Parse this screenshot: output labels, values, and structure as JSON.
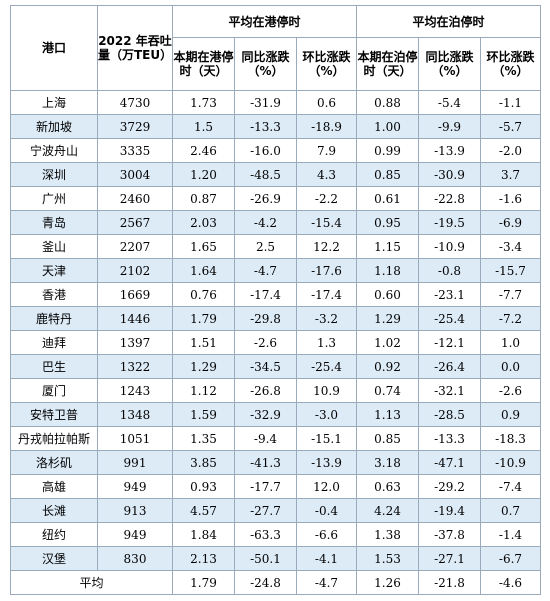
{
  "table": {
    "header": {
      "port": "港口",
      "throughput": "2022 年吞吐量（万TEU）",
      "group_port": "平均在港停时",
      "group_berth": "平均在泊停时",
      "sub": [
        "本期在港停时（天）",
        "同比涨跌（%）",
        "环比涨跌（%）",
        "本期在泊停时（天）",
        "同比涨跌（%）",
        "环比涨跌（%）"
      ]
    },
    "rows": [
      [
        "上海",
        "4730",
        "1.73",
        "-31.9",
        "0.6",
        "0.88",
        "-5.4",
        "-1.1"
      ],
      [
        "新加坡",
        "3729",
        "1.5",
        "-13.3",
        "-18.9",
        "1.00",
        "-9.9",
        "-5.7"
      ],
      [
        "宁波舟山",
        "3335",
        "2.46",
        "-16.0",
        "7.9",
        "0.99",
        "-13.9",
        "-2.0"
      ],
      [
        "深圳",
        "3004",
        "1.20",
        "-48.5",
        "4.3",
        "0.85",
        "-30.9",
        "3.7"
      ],
      [
        "广州",
        "2460",
        "0.87",
        "-26.9",
        "-2.2",
        "0.61",
        "-22.8",
        "-1.6"
      ],
      [
        "青岛",
        "2567",
        "2.03",
        "-4.2",
        "-15.4",
        "0.95",
        "-19.5",
        "-6.9"
      ],
      [
        "釜山",
        "2207",
        "1.65",
        "2.5",
        "12.2",
        "1.15",
        "-10.9",
        "-3.4"
      ],
      [
        "天津",
        "2102",
        "1.64",
        "-4.7",
        "-17.6",
        "1.18",
        "-0.8",
        "-15.7"
      ],
      [
        "香港",
        "1669",
        "0.76",
        "-17.4",
        "-17.4",
        "0.60",
        "-23.1",
        "-7.7"
      ],
      [
        "鹿特丹",
        "1446",
        "1.79",
        "-29.8",
        "-3.2",
        "1.29",
        "-25.4",
        "-7.2"
      ],
      [
        "迪拜",
        "1397",
        "1.51",
        "-2.6",
        "1.3",
        "1.02",
        "-12.1",
        "1.0"
      ],
      [
        "巴生",
        "1322",
        "1.29",
        "-34.5",
        "-25.4",
        "0.92",
        "-26.4",
        "0.0"
      ],
      [
        "厦门",
        "1243",
        "1.12",
        "-26.8",
        "10.9",
        "0.74",
        "-32.1",
        "-2.6"
      ],
      [
        "安特卫普",
        "1348",
        "1.59",
        "-32.9",
        "-3.0",
        "1.13",
        "-28.5",
        "0.9"
      ],
      [
        "丹戎帕拉帕斯",
        "1051",
        "1.35",
        "-9.4",
        "-15.1",
        "0.85",
        "-13.3",
        "-18.3"
      ],
      [
        "洛杉矶",
        "991",
        "3.85",
        "-41.3",
        "-13.9",
        "3.18",
        "-47.1",
        "-10.9"
      ],
      [
        "高雄",
        "949",
        "0.93",
        "-17.7",
        "12.0",
        "0.63",
        "-29.2",
        "-7.4"
      ],
      [
        "长滩",
        "913",
        "4.57",
        "-27.7",
        "-0.4",
        "4.24",
        "-19.4",
        "0.7"
      ],
      [
        "纽约",
        "949",
        "1.84",
        "-63.3",
        "-6.6",
        "1.38",
        "-37.8",
        "-1.4"
      ],
      [
        "汉堡",
        "830",
        "2.13",
        "-50.1",
        "-4.1",
        "1.53",
        "-27.1",
        "-6.7"
      ]
    ],
    "average": {
      "label": "平均",
      "values": [
        "1.79",
        "-24.8",
        "-4.7",
        "1.26",
        "-21.8",
        "-4.6"
      ]
    }
  }
}
